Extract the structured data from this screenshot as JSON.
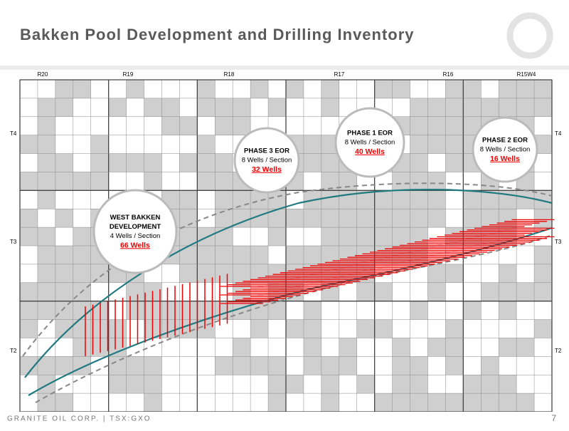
{
  "header": {
    "title": "Bakken Pool Development and Drilling Inventory"
  },
  "map": {
    "range_labels": [
      "R20",
      "R19",
      "R18",
      "R17",
      "R16",
      "R15W4"
    ],
    "township_labels_left": [
      "T4",
      "T3",
      "T2"
    ],
    "township_labels_right": [
      "T4",
      "T3",
      "T2"
    ],
    "callouts": [
      {
        "lines": [
          "WEST BAKKEN",
          "DEVELOPMENT",
          "4 Wells / Section"
        ],
        "wells": "66 Wells"
      },
      {
        "lines": [
          "PHASE 3 EOR",
          "8 Wells / Section"
        ],
        "wells": "32 Wells"
      },
      {
        "lines": [
          "PHASE 1 EOR",
          "8 Wells / Section"
        ],
        "wells": "40 Wells"
      },
      {
        "lines": [
          "PHASE 2 EOR",
          "8 Wells / Section"
        ],
        "wells": "16 Wells"
      }
    ]
  },
  "footer": {
    "company": "GRANITE OIL CORP. | TSX:GXO",
    "page": "7"
  }
}
